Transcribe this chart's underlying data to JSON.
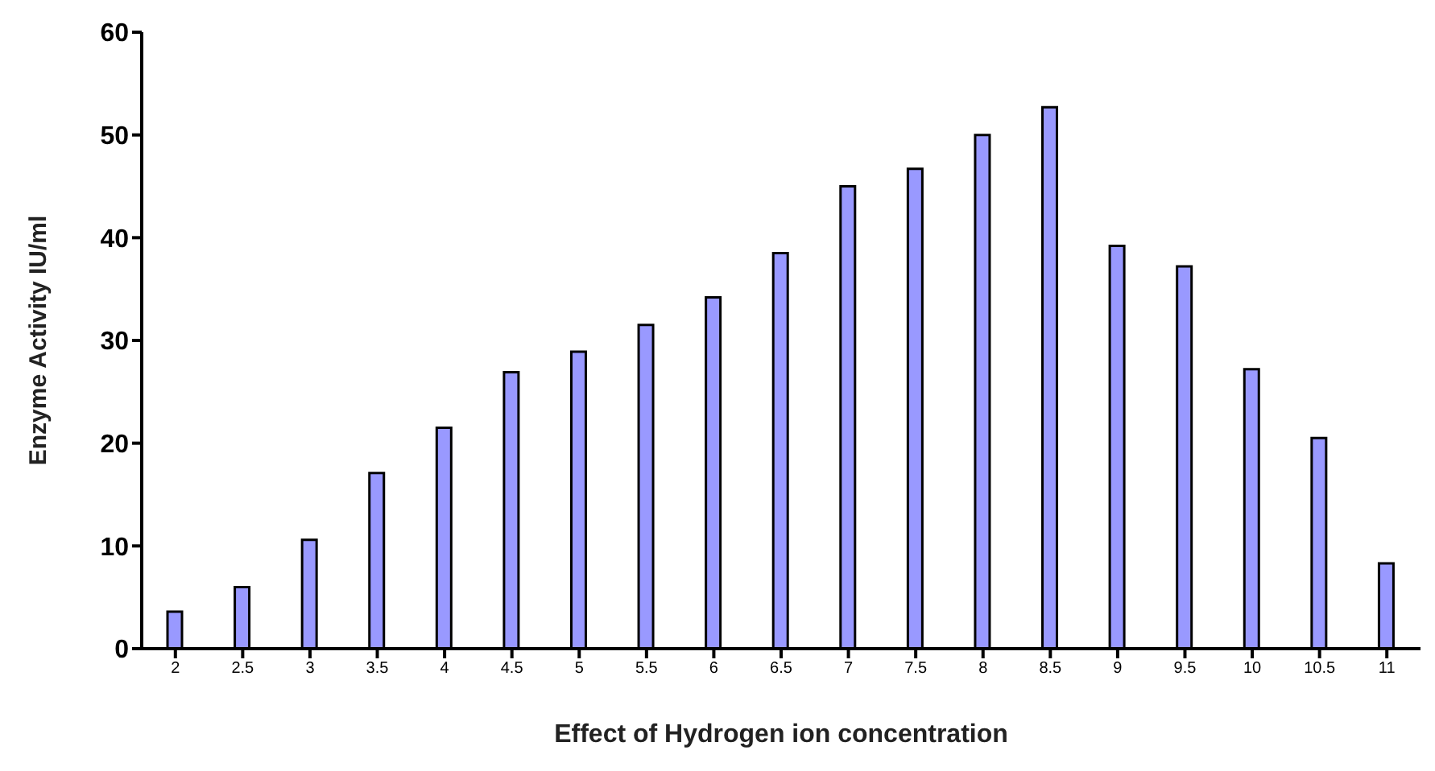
{
  "chart_data": {
    "type": "bar",
    "xlabel": "Effect of Hydrogen ion concentration",
    "ylabel": "Enzyme  Activity IU/ml",
    "categories": [
      "2",
      "2.5",
      "3",
      "3.5",
      "4",
      "4.5",
      "5",
      "5.5",
      "6",
      "6.5",
      "7",
      "7.5",
      "8",
      "8.5",
      "9",
      "9.5",
      "10",
      "10.5",
      "11"
    ],
    "values": [
      3.6,
      6.0,
      10.6,
      17.1,
      21.5,
      26.9,
      28.9,
      31.5,
      34.2,
      38.5,
      45.0,
      46.7,
      50.0,
      52.7,
      39.2,
      37.2,
      27.2,
      20.5,
      8.3
    ],
    "color": "#9999ff",
    "ylim": [
      0,
      60
    ],
    "yticks": [
      0,
      10,
      20,
      30,
      40,
      50,
      60
    ],
    "grid": false,
    "legend": false
  }
}
